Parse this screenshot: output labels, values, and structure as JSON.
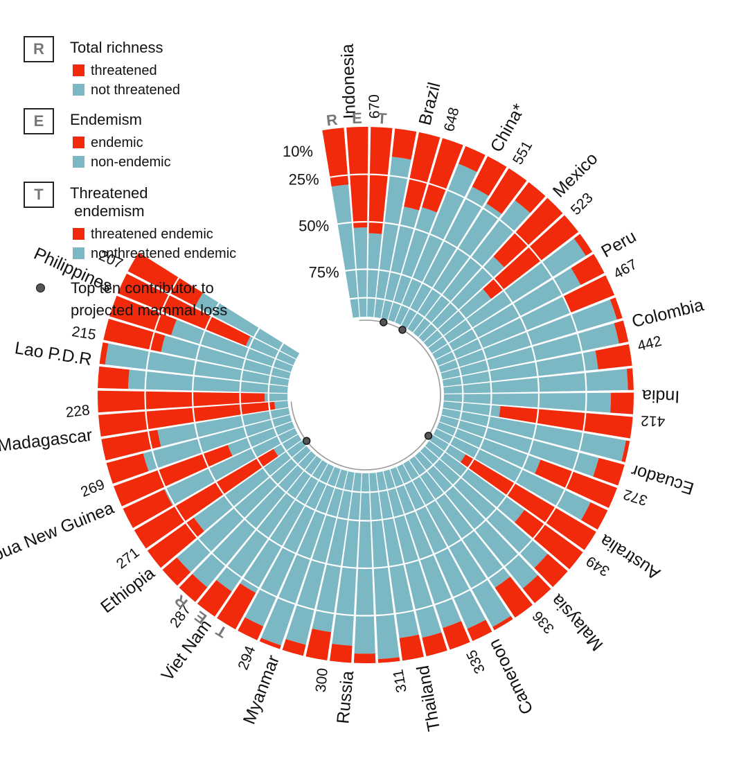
{
  "colors": {
    "red": "#f02a0a",
    "blue": "#7cb7c4",
    "gap": "#ffffff",
    "dot": "#555555",
    "circle": "#9a9a9a"
  },
  "legend": {
    "groups": [
      {
        "letter": "R",
        "title": "Total richness",
        "items": [
          {
            "label": "threatened",
            "color": "red"
          },
          {
            "label": "not threatened",
            "color": "blue"
          }
        ]
      },
      {
        "letter": "E",
        "title": "Endemism",
        "items": [
          {
            "label": "endemic",
            "color": "red"
          },
          {
            "label": "non-endemic",
            "color": "blue"
          }
        ]
      },
      {
        "letter": "T",
        "title": "Threatened\n endemism",
        "items": [
          {
            "label": "threatened endemic",
            "color": "red"
          },
          {
            "label": "nonthreatened endemic",
            "color": "blue"
          }
        ]
      }
    ],
    "dot_label": "Top ten contributor to\nprojected mammal loss"
  },
  "chart_data": {
    "type": "radial-bar",
    "ring_letters_top": [
      "R",
      "E",
      "T"
    ],
    "ring_letters_bottom": [
      "T",
      "E",
      "R"
    ],
    "scale_ticks": [
      "10%",
      "25%",
      "50%",
      "75%"
    ],
    "countries": [
      {
        "name": "Indonesia",
        "count": "670",
        "R": 0.3,
        "E": 0.53,
        "T": 0.56,
        "top_ten": false
      },
      {
        "name": "Brazil",
        "count": "648",
        "R": 0.15,
        "E": 0.4,
        "T": 0.38,
        "top_ten": true
      },
      {
        "name": "China*",
        "count": "551",
        "R": 0.1,
        "E": 0.18,
        "T": 0.22,
        "top_ten": true
      },
      {
        "name": "Mexico",
        "count": "523",
        "R": 0.12,
        "E": 0.42,
        "T": 0.58,
        "top_ten": false
      },
      {
        "name": "Peru",
        "count": "467",
        "R": 0.04,
        "E": 0.14,
        "T": 0.25,
        "top_ten": false
      },
      {
        "name": "Colombia",
        "count": "442",
        "R": 0.03,
        "E": 0.05,
        "T": 0.18,
        "top_ten": false
      },
      {
        "name": "India",
        "count": "412",
        "R": 0.03,
        "E": 0.12,
        "T": 0.7,
        "top_ten": false
      },
      {
        "name": "Ecuador",
        "count": "372",
        "R": 0.02,
        "E": 0.14,
        "T": 0.43,
        "top_ten": false
      },
      {
        "name": "Australia",
        "count": "349",
        "R": 0.1,
        "E": 0.8,
        "T": 0.38,
        "top_ten": true
      },
      {
        "name": "Malaysia",
        "count": "336",
        "R": 0.14,
        "E": 0.1,
        "T": 0.19,
        "top_ten": false
      },
      {
        "name": "Cameroon",
        "count": "335",
        "R": 0.02,
        "E": 0.07,
        "T": 0.12,
        "top_ten": false
      },
      {
        "name": "Thailand",
        "count": "311",
        "R": 0.1,
        "E": 0.12,
        "T": 0.02,
        "top_ten": false
      },
      {
        "name": "Russia",
        "count": "300",
        "R": 0.05,
        "E": 0.09,
        "T": 0.15,
        "top_ten": false
      },
      {
        "name": "Myanmar",
        "count": "294",
        "R": 0.06,
        "E": 0.02,
        "T": 0.08,
        "top_ten": false
      },
      {
        "name": "Viet Nam",
        "count": "287",
        "R": 0.22,
        "E": 0.16,
        "T": 0.1,
        "top_ten": false
      },
      {
        "name": "Ethiopia",
        "count": "271",
        "R": 0.1,
        "E": 0.3,
        "T": 0.85,
        "top_ten": true
      },
      {
        "name": "Papua New Guinea",
        "count": "269",
        "R": 0.24,
        "E": 0.64,
        "T": 0.2,
        "top_ten": false
      },
      {
        "name": "Madagascar",
        "count": "228",
        "R": 0.3,
        "E": 0.93,
        "T": 0.88,
        "top_ten": false
      },
      {
        "name": "Lao P.D.R",
        "count": "215",
        "R": 0.16,
        "E": 0.03,
        "T": 0.31,
        "top_ten": false
      },
      {
        "name": "Philippines",
        "count": "207",
        "R": 0.34,
        "E": 0.73,
        "T": 0.4,
        "top_ten": false
      }
    ]
  }
}
